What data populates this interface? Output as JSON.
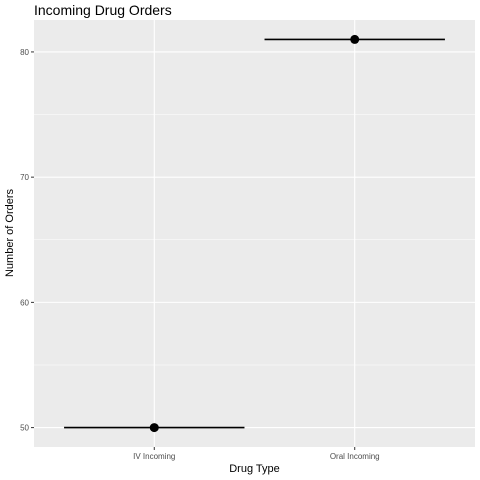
{
  "chart_data": {
    "type": "scatter",
    "title": "Incoming Drug Orders",
    "xlabel": "Drug Type",
    "ylabel": "Number of Orders",
    "categories": [
      "IV Incoming",
      "Oral Incoming"
    ],
    "values": [
      50,
      81
    ],
    "y_ticks": [
      50,
      60,
      70,
      80
    ],
    "y_tick_labels": [
      "50",
      "60",
      "70",
      "80"
    ],
    "ylim": [
      48.45,
      82.55
    ],
    "grid": true,
    "legend": "none",
    "colors": {
      "panel": "#ebebeb",
      "grid_major": "#ffffff",
      "point": "#000000",
      "errorbar": "#000000"
    }
  }
}
